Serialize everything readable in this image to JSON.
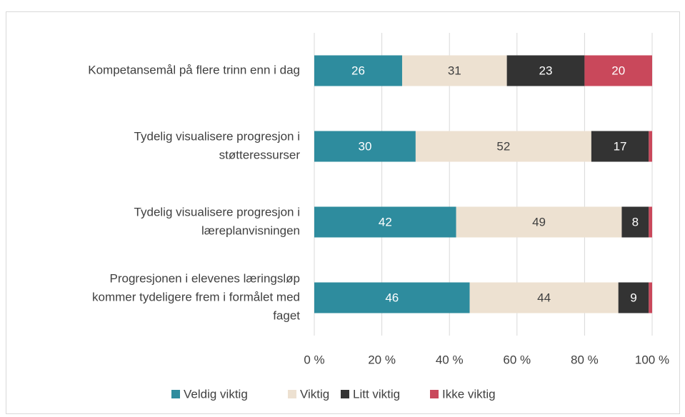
{
  "chart_data": {
    "type": "stacked_bar_horizontal",
    "categories": [
      [
        "Kompetansemål på flere trinn enn i dag"
      ],
      [
        "Tydelig visualisere progresjon i",
        "støtteressurser"
      ],
      [
        "Tydelig visualisere progresjon i",
        "læreplanvisningen"
      ],
      [
        "Progresjonen i elevenes læringsløp",
        "kommer tydeligere frem i formålet med",
        "faget"
      ]
    ],
    "series": [
      {
        "name": "Veldig viktig",
        "color": "#2e8c9e",
        "values": [
          26,
          30,
          42,
          46
        ]
      },
      {
        "name": "Viktig",
        "color": "#ede1d1",
        "values": [
          31,
          52,
          49,
          44
        ]
      },
      {
        "name": "Litt viktig",
        "color": "#333333",
        "values": [
          23,
          17,
          8,
          9
        ]
      },
      {
        "name": "Ikke viktig",
        "color": "#c9485b",
        "values": [
          20,
          1,
          1,
          1
        ]
      }
    ],
    "xlim": [
      0,
      100
    ],
    "xticks": [
      {
        "value": 0,
        "label": "0 %"
      },
      {
        "value": 20,
        "label": "20 %"
      },
      {
        "value": 40,
        "label": "40 %"
      },
      {
        "value": 60,
        "label": "60 %"
      },
      {
        "value": 80,
        "label": "80 %"
      },
      {
        "value": 100,
        "label": "100 %"
      }
    ],
    "grid": true,
    "legend": "bottom"
  }
}
